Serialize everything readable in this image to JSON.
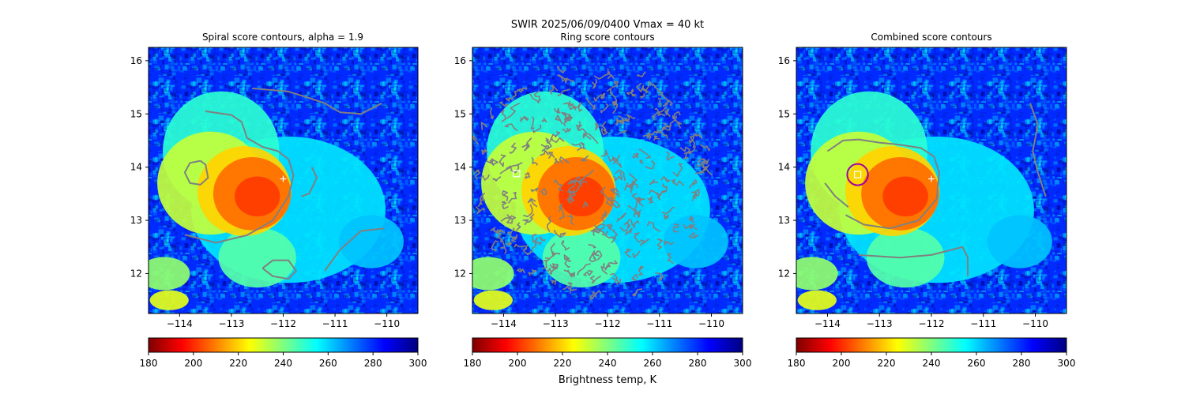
{
  "figure": {
    "suptitle": "SWIR  2025/06/09/0400    Vmax = 40 kt",
    "colorbar_label": "Brightness temp, K"
  },
  "colors": {
    "contour": "#808080",
    "center_marker": "#ffffff",
    "ring_circle": "#a000a0",
    "background": "#ffffff"
  },
  "colorbar": {
    "range": [
      180,
      300
    ],
    "ticks": [
      "180",
      "200",
      "220",
      "240",
      "260",
      "280",
      "300"
    ],
    "tick_values": [
      180,
      200,
      220,
      240,
      260,
      280,
      300
    ],
    "colormap": "jet_r"
  },
  "chart_data": [
    {
      "type": "heatmap",
      "id": "spiral",
      "title": "Spiral score contours, alpha =  1.9",
      "xlim": [
        -114.6,
        -109.4
      ],
      "ylim": [
        11.25,
        16.25
      ],
      "xticks": [
        -114,
        -113,
        -112,
        -111,
        -110
      ],
      "xtick_labels": [
        "−114",
        "−113",
        "−112",
        "−111",
        "−110"
      ],
      "yticks": [
        12,
        13,
        14,
        15,
        16
      ],
      "ytick_labels": [
        "12",
        "13",
        "14",
        "15",
        "16"
      ],
      "xlabel": "",
      "ylabel": "",
      "center_marker": {
        "lon": -112.0,
        "lat": 13.78,
        "symbol": "+"
      },
      "contours": [
        [
          [
            -112.6,
            15.48
          ],
          [
            -111.9,
            15.42
          ],
          [
            -111.5,
            15.3
          ],
          [
            -111.2,
            15.2
          ],
          [
            -110.9,
            15.03
          ],
          [
            -110.5,
            15.0
          ],
          [
            -110.1,
            15.2
          ]
        ],
        [
          [
            -113.5,
            15.05
          ],
          [
            -113.0,
            14.98
          ],
          [
            -112.8,
            14.85
          ],
          [
            -112.7,
            14.55
          ],
          [
            -112.4,
            14.38
          ],
          [
            -112.1,
            14.3
          ],
          [
            -111.9,
            14.15
          ],
          [
            -111.8,
            13.85
          ],
          [
            -111.9,
            13.45
          ],
          [
            -112.2,
            13.0
          ],
          [
            -112.7,
            12.72
          ],
          [
            -113.3,
            12.58
          ],
          [
            -113.9,
            12.73
          ]
        ],
        [
          [
            -113.6,
            14.12
          ],
          [
            -113.8,
            14.08
          ],
          [
            -113.9,
            13.9
          ],
          [
            -113.8,
            13.7
          ],
          [
            -113.6,
            13.67
          ],
          [
            -113.45,
            13.8
          ],
          [
            -113.5,
            14.05
          ],
          [
            -113.6,
            14.12
          ]
        ],
        [
          [
            -111.45,
            14.0
          ],
          [
            -111.35,
            13.8
          ],
          [
            -111.5,
            13.5
          ],
          [
            -111.65,
            13.45
          ]
        ],
        [
          [
            -112.4,
            12.1
          ],
          [
            -112.2,
            12.25
          ],
          [
            -111.9,
            12.25
          ],
          [
            -111.75,
            12.05
          ],
          [
            -111.9,
            11.9
          ],
          [
            -112.2,
            11.95
          ],
          [
            -112.4,
            12.1
          ]
        ],
        [
          [
            -111.2,
            12.05
          ],
          [
            -110.9,
            12.45
          ],
          [
            -110.5,
            12.8
          ],
          [
            -110.05,
            12.85
          ]
        ]
      ]
    },
    {
      "type": "heatmap",
      "id": "ring",
      "title": "Ring score contours",
      "xlim": [
        -114.6,
        -109.4
      ],
      "ylim": [
        11.25,
        16.25
      ],
      "xticks": [
        -114,
        -113,
        -112,
        -111,
        -110
      ],
      "xtick_labels": [
        "−114",
        "−113",
        "−112",
        "−111",
        "−110"
      ],
      "yticks": [
        12,
        13,
        14,
        15,
        16
      ],
      "ytick_labels": [
        "12",
        "13",
        "14",
        "15",
        "16"
      ],
      "xlabel": "Brightness temp, K",
      "ylabel": "",
      "square_marker": {
        "lon": -113.75,
        "lat": 13.88,
        "symbol": "square"
      },
      "ring_region": {
        "center_lon": -112.3,
        "center_lat": 13.7,
        "radius_deg": 2.2
      },
      "contours": []
    },
    {
      "type": "heatmap",
      "id": "combined",
      "title": "Combined score contours",
      "xlim": [
        -114.6,
        -109.4
      ],
      "ylim": [
        11.25,
        16.25
      ],
      "xticks": [
        -114,
        -113,
        -112,
        -111,
        -110
      ],
      "xtick_labels": [
        "−114",
        "−113",
        "−112",
        "−111",
        "−110"
      ],
      "yticks": [
        12,
        13,
        14,
        15,
        16
      ],
      "ytick_labels": [
        "12",
        "13",
        "14",
        "15",
        "16"
      ],
      "xlabel": "",
      "ylabel": "",
      "center_marker": {
        "lon": -112.0,
        "lat": 13.78,
        "symbol": "+"
      },
      "square_marker": {
        "lon": -113.42,
        "lat": 13.86,
        "symbol": "square"
      },
      "ring_circle": {
        "lon": -113.42,
        "lat": 13.86,
        "radius_deg": 0.2
      },
      "contours": [
        [
          [
            -114.0,
            14.3
          ],
          [
            -113.7,
            14.5
          ],
          [
            -113.4,
            14.52
          ],
          [
            -113.0,
            14.46
          ],
          [
            -112.6,
            14.42
          ],
          [
            -112.2,
            14.36
          ],
          [
            -111.95,
            14.2
          ],
          [
            -111.85,
            13.9
          ],
          [
            -111.9,
            13.4
          ],
          [
            -112.25,
            13.0
          ],
          [
            -112.8,
            12.85
          ],
          [
            -113.3,
            12.92
          ],
          [
            -113.65,
            13.1
          ]
        ],
        [
          [
            -114.05,
            13.7
          ],
          [
            -113.85,
            13.45
          ],
          [
            -113.6,
            13.25
          ]
        ],
        [
          [
            -113.4,
            12.35
          ],
          [
            -112.6,
            12.3
          ],
          [
            -112.0,
            12.35
          ],
          [
            -111.6,
            12.45
          ],
          [
            -111.4,
            12.5
          ],
          [
            -111.3,
            12.3
          ],
          [
            -111.3,
            11.95
          ]
        ],
        [
          [
            -110.1,
            15.2
          ],
          [
            -109.95,
            14.8
          ],
          [
            -110.05,
            14.3
          ],
          [
            -109.95,
            13.9
          ],
          [
            -109.8,
            13.45
          ]
        ]
      ]
    }
  ]
}
